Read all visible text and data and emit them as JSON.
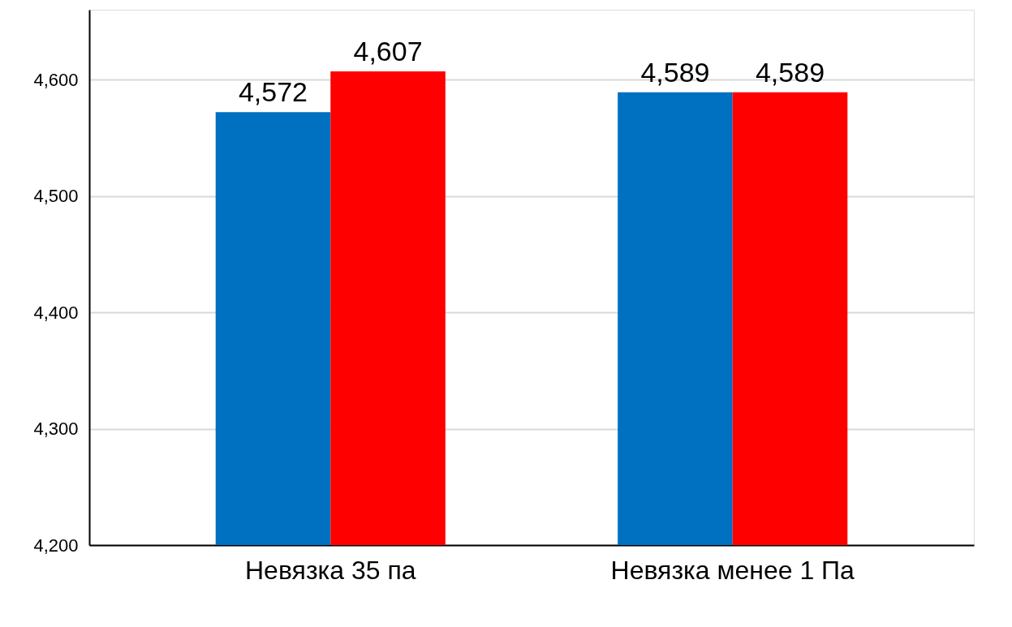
{
  "chart_data": {
    "type": "bar",
    "categories": [
      "Невязка 35 па",
      "Невязка менее 1 Па"
    ],
    "series": [
      {
        "color": "#0070c0",
        "values": [
          4572,
          4589
        ],
        "value_labels": [
          "4,572",
          "4,589"
        ]
      },
      {
        "color": "#ff0000",
        "values": [
          4607,
          4589
        ],
        "value_labels": [
          "4,607",
          "4,589"
        ]
      }
    ],
    "ylim": [
      4200,
      4660
    ],
    "yticks": [
      {
        "value": 4200,
        "label": "4,200"
      },
      {
        "value": 4300,
        "label": "4,300"
      },
      {
        "value": 4400,
        "label": "4,400"
      },
      {
        "value": 4500,
        "label": "4,500"
      },
      {
        "value": 4600,
        "label": "4,600"
      }
    ],
    "grid": "y",
    "legend": false
  }
}
